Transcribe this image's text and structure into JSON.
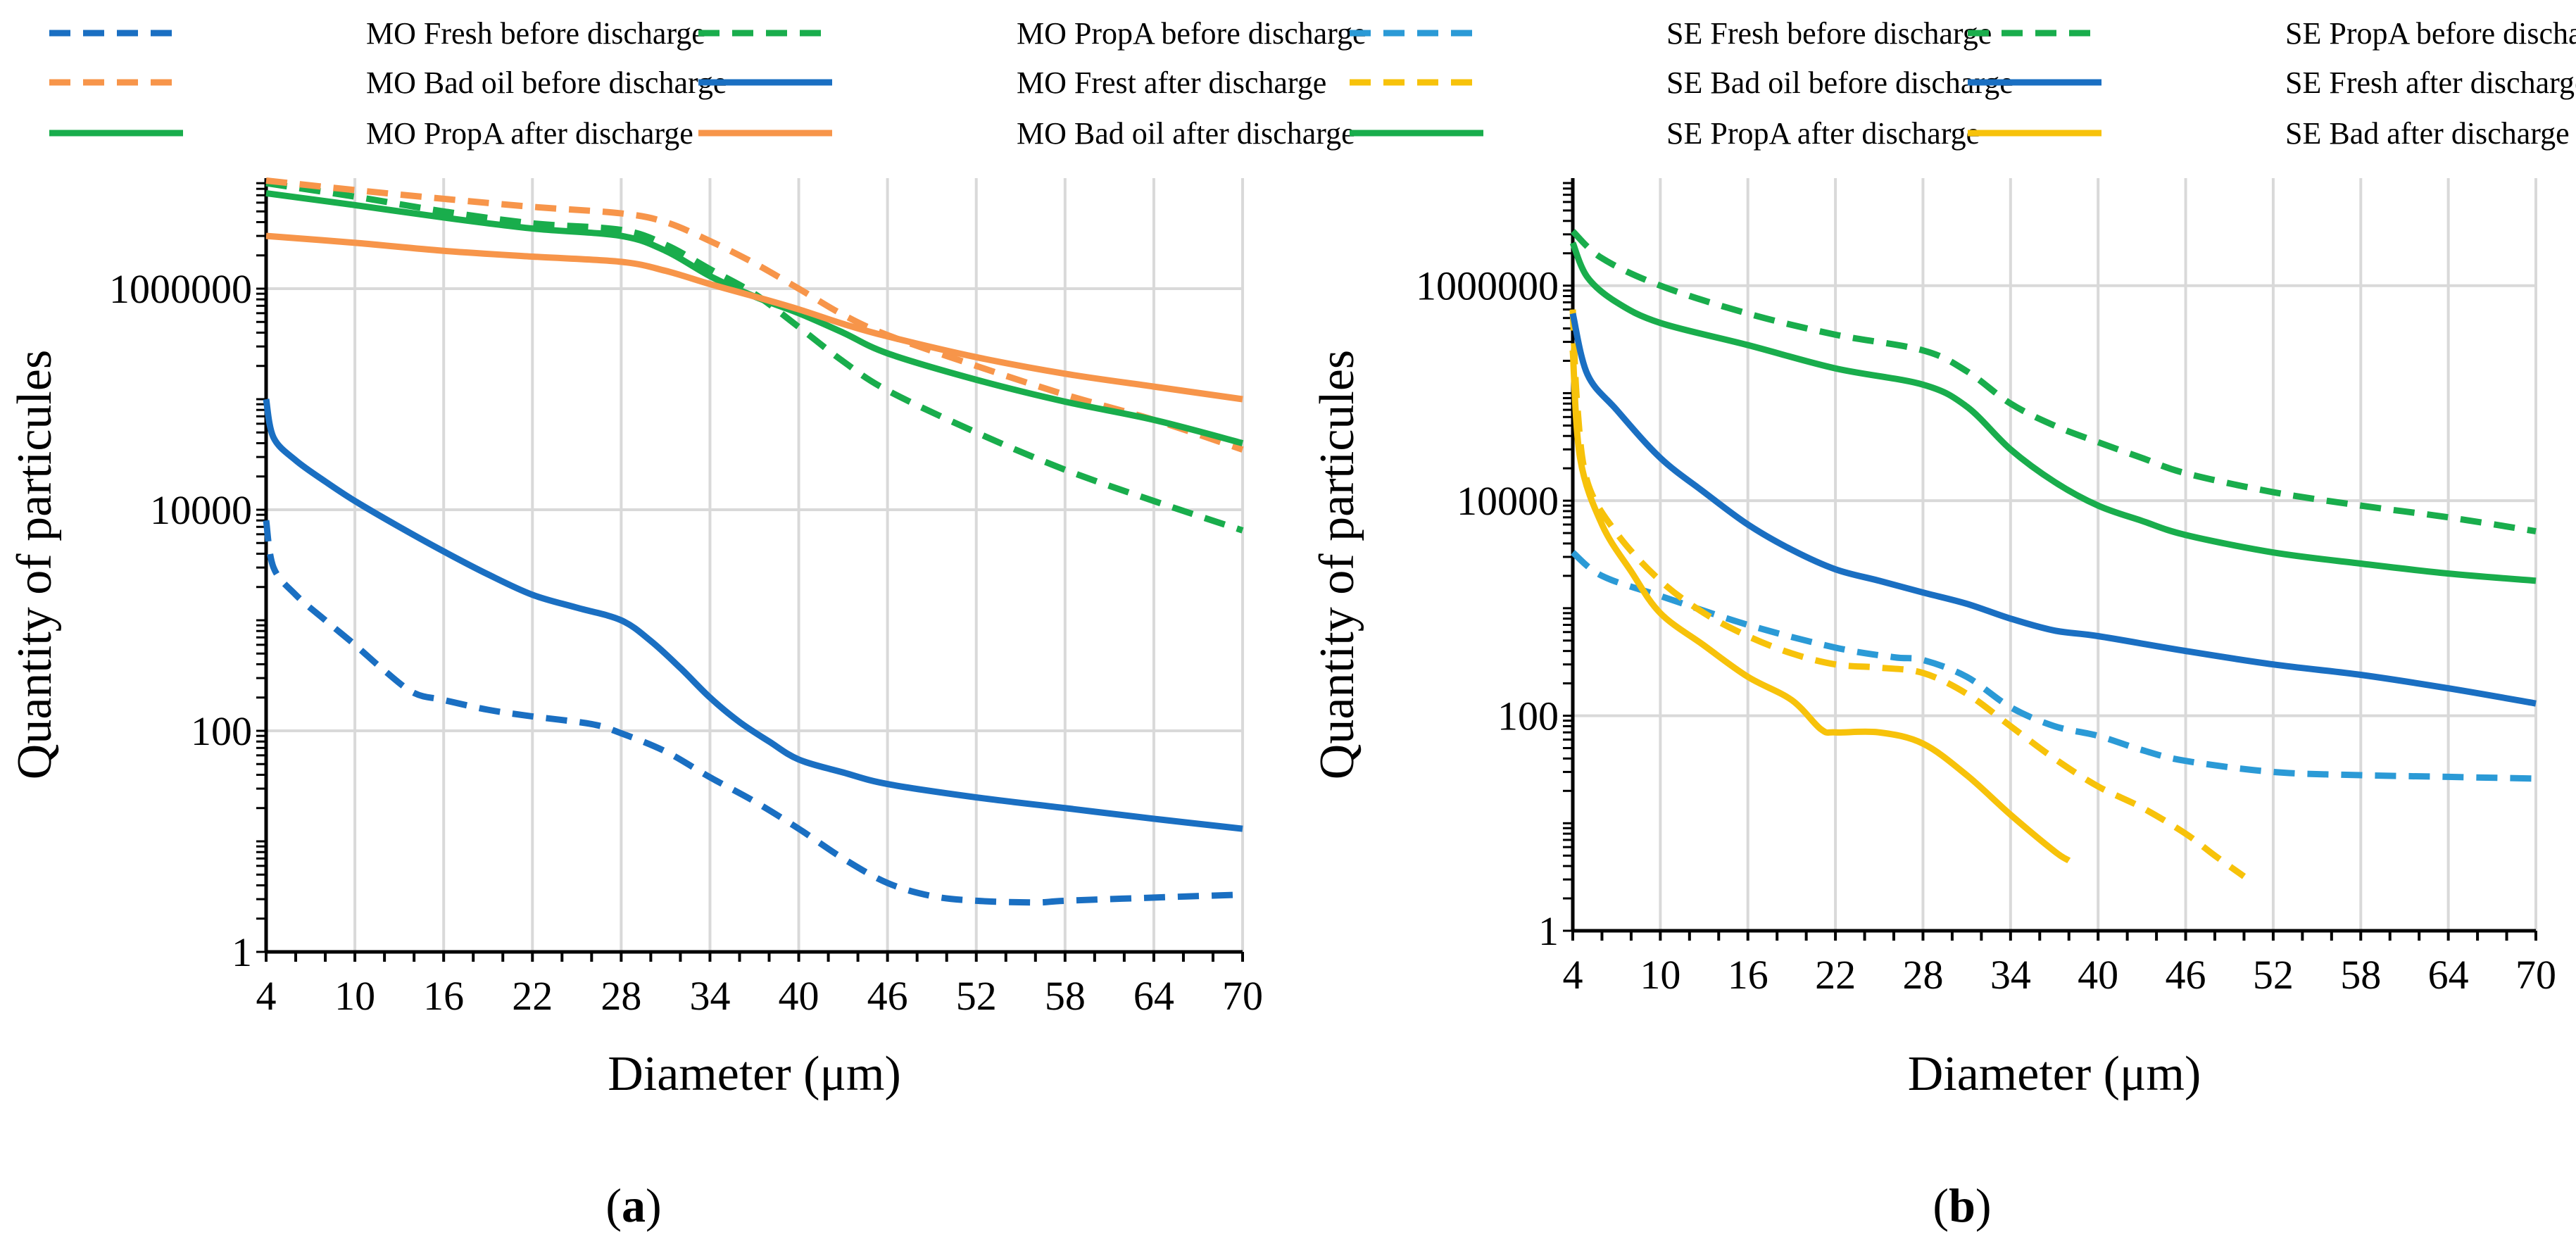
{
  "chart_data": [
    {
      "type": "line",
      "panel_label": "a",
      "yscale": "log",
      "xlabel": "Diameter (μm)",
      "ylabel": "Quantity of particules",
      "xlim": [
        4,
        70
      ],
      "ylim": [
        1,
        10000000
      ],
      "x_ticks": [
        4,
        10,
        16,
        22,
        28,
        34,
        40,
        46,
        52,
        58,
        64,
        70
      ],
      "y_ticks": [
        1,
        100,
        10000,
        1000000
      ],
      "legend": {
        "placement": "top",
        "columns": 2
      },
      "series": [
        {
          "name": "MO Fresh before discharge",
          "color": "#1a6fc2",
          "dash": true,
          "points": [
            [
              4,
              8000
            ],
            [
              4.5,
              3000
            ],
            [
              6,
              1700
            ],
            [
              8,
              1000
            ],
            [
              10,
              600
            ],
            [
              12,
              350
            ],
            [
              14,
              220
            ],
            [
              16,
              190
            ],
            [
              19,
              155
            ],
            [
              22,
              135
            ],
            [
              26,
              115
            ],
            [
              28,
              95
            ],
            [
              31,
              65
            ],
            [
              34,
              38
            ],
            [
              37,
              23
            ],
            [
              40,
              13
            ],
            [
              43,
              7
            ],
            [
              46,
              4.2
            ],
            [
              49,
              3.2
            ],
            [
              52,
              2.9
            ],
            [
              56,
              2.8
            ],
            [
              58,
              2.9
            ],
            [
              64,
              3.1
            ],
            [
              70,
              3.3
            ]
          ]
        },
        {
          "name": "MO PropA before discharge",
          "color": "#19ad4c",
          "dash": true,
          "points": [
            [
              4,
              9000000
            ],
            [
              10,
              6800000
            ],
            [
              16,
              5000000
            ],
            [
              22,
              3900000
            ],
            [
              28,
              3400000
            ],
            [
              31,
              2500000
            ],
            [
              34,
              1500000
            ],
            [
              37,
              900000
            ],
            [
              40,
              450000
            ],
            [
              43,
              220000
            ],
            [
              46,
              120000
            ],
            [
              52,
              50000
            ],
            [
              58,
              23000
            ],
            [
              64,
              12000
            ],
            [
              70,
              6500
            ]
          ]
        },
        {
          "name": "MO Bad oil before discharge",
          "color": "#f7954a",
          "dash": true,
          "points": [
            [
              4,
              9500000
            ],
            [
              10,
              7800000
            ],
            [
              16,
              6500000
            ],
            [
              22,
              5500000
            ],
            [
              28,
              4800000
            ],
            [
              31,
              4000000
            ],
            [
              34,
              2700000
            ],
            [
              37,
              1700000
            ],
            [
              40,
              1000000
            ],
            [
              43,
              580000
            ],
            [
              46,
              380000
            ],
            [
              52,
              200000
            ],
            [
              58,
              110000
            ],
            [
              64,
              65000
            ],
            [
              70,
              35000
            ]
          ]
        },
        {
          "name": "MO Frest after discharge",
          "color": "#1a6fc2",
          "dash": false,
          "points": [
            [
              4,
              100000
            ],
            [
              4.5,
              45000
            ],
            [
              6,
              28000
            ],
            [
              8,
              18000
            ],
            [
              10,
              12000
            ],
            [
              13,
              7000
            ],
            [
              16,
              4200
            ],
            [
              19,
              2600
            ],
            [
              22,
              1700
            ],
            [
              25,
              1300
            ],
            [
              28,
              1000
            ],
            [
              30,
              650
            ],
            [
              32,
              370
            ],
            [
              34,
              200
            ],
            [
              36,
              120
            ],
            [
              38,
              80
            ],
            [
              40,
              55
            ],
            [
              43,
              42
            ],
            [
              46,
              33
            ],
            [
              52,
              25
            ],
            [
              58,
              20
            ],
            [
              64,
              16
            ],
            [
              70,
              13
            ]
          ]
        },
        {
          "name": "MO PropA after discharge",
          "color": "#19ad4c",
          "dash": false,
          "points": [
            [
              4,
              7300000
            ],
            [
              10,
              5700000
            ],
            [
              16,
              4400000
            ],
            [
              22,
              3500000
            ],
            [
              28,
              3000000
            ],
            [
              31,
              2200000
            ],
            [
              34,
              1300000
            ],
            [
              37,
              850000
            ],
            [
              40,
              600000
            ],
            [
              43,
              400000
            ],
            [
              46,
              260000
            ],
            [
              52,
              150000
            ],
            [
              58,
              95000
            ],
            [
              64,
              65000
            ],
            [
              70,
              40000
            ]
          ]
        },
        {
          "name": "MO Bad oil after discharge",
          "color": "#f7954a",
          "dash": false,
          "points": [
            [
              4,
              3000000
            ],
            [
              10,
              2600000
            ],
            [
              16,
              2200000
            ],
            [
              22,
              1950000
            ],
            [
              28,
              1750000
            ],
            [
              31,
              1450000
            ],
            [
              34,
              1100000
            ],
            [
              37,
              850000
            ],
            [
              40,
              650000
            ],
            [
              43,
              480000
            ],
            [
              46,
              370000
            ],
            [
              52,
              240000
            ],
            [
              58,
              170000
            ],
            [
              64,
              130000
            ],
            [
              70,
              100000
            ]
          ]
        }
      ]
    },
    {
      "type": "line",
      "panel_label": "b",
      "yscale": "log",
      "xlabel": "Diameter (μm)",
      "ylabel": "Quantity of particules",
      "xlim": [
        4,
        70
      ],
      "ylim": [
        1,
        10000000
      ],
      "x_ticks": [
        4,
        10,
        16,
        22,
        28,
        34,
        40,
        46,
        52,
        58,
        64,
        70
      ],
      "y_ticks": [
        1,
        100,
        10000,
        1000000
      ],
      "legend": {
        "placement": "top",
        "columns": 2
      },
      "series": [
        {
          "name": "SE Fresh before discharge",
          "color": "#2b9ad6",
          "dash": true,
          "points": [
            [
              4,
              3300
            ],
            [
              6,
              2000
            ],
            [
              10,
              1300
            ],
            [
              16,
              700
            ],
            [
              22,
              430
            ],
            [
              26,
              350
            ],
            [
              28,
              330
            ],
            [
              31,
              230
            ],
            [
              34,
              120
            ],
            [
              37,
              80
            ],
            [
              40,
              65
            ],
            [
              43,
              48
            ],
            [
              46,
              38
            ],
            [
              52,
              30
            ],
            [
              58,
              28
            ],
            [
              64,
              27
            ],
            [
              70,
              26
            ]
          ]
        },
        {
          "name": "SE PropA before discharge",
          "color": "#19ad4c",
          "dash": true,
          "points": [
            [
              4,
              3200000
            ],
            [
              6,
              1800000
            ],
            [
              10,
              1000000
            ],
            [
              16,
              550000
            ],
            [
              22,
              350000
            ],
            [
              28,
              250000
            ],
            [
              31,
              160000
            ],
            [
              34,
              80000
            ],
            [
              37,
              50000
            ],
            [
              40,
              35000
            ],
            [
              43,
              25000
            ],
            [
              46,
              18000
            ],
            [
              52,
              12000
            ],
            [
              58,
              9000
            ],
            [
              64,
              7000
            ],
            [
              70,
              5200
            ]
          ]
        },
        {
          "name": "SE Bad oil before discharge",
          "color": "#f7c20a",
          "dash": true,
          "points": [
            [
              4,
              600000
            ],
            [
              4.3,
              80000
            ],
            [
              5,
              15000
            ],
            [
              7,
              5000
            ],
            [
              10,
              1800
            ],
            [
              13,
              900
            ],
            [
              16,
              550
            ],
            [
              19,
              380
            ],
            [
              22,
              300
            ],
            [
              25,
              280
            ],
            [
              28,
              250
            ],
            [
              31,
              160
            ],
            [
              34,
              80
            ],
            [
              37,
              40
            ],
            [
              40,
              22
            ],
            [
              43,
              14
            ],
            [
              46,
              8
            ],
            [
              48,
              5
            ],
            [
              50,
              3.2
            ]
          ]
        },
        {
          "name": "SE Fresh after discharge",
          "color": "#1a6fc2",
          "dash": false,
          "points": [
            [
              4,
              550000
            ],
            [
              5,
              150000
            ],
            [
              7,
              70000
            ],
            [
              10,
              25000
            ],
            [
              13,
              12000
            ],
            [
              16,
              6000
            ],
            [
              19,
              3500
            ],
            [
              22,
              2300
            ],
            [
              25,
              1800
            ],
            [
              28,
              1400
            ],
            [
              31,
              1100
            ],
            [
              34,
              800
            ],
            [
              37,
              620
            ],
            [
              40,
              550
            ],
            [
              46,
              400
            ],
            [
              52,
              300
            ],
            [
              58,
              240
            ],
            [
              64,
              180
            ],
            [
              70,
              130
            ]
          ]
        },
        {
          "name": "SE PropA after discharge",
          "color": "#19ad4c",
          "dash": false,
          "points": [
            [
              4,
              2500000
            ],
            [
              5,
              1200000
            ],
            [
              7,
              700000
            ],
            [
              10,
              450000
            ],
            [
              16,
              280000
            ],
            [
              22,
              170000
            ],
            [
              28,
              120000
            ],
            [
              31,
              75000
            ],
            [
              34,
              30000
            ],
            [
              37,
              15000
            ],
            [
              40,
              9000
            ],
            [
              43,
              6500
            ],
            [
              46,
              4800
            ],
            [
              52,
              3300
            ],
            [
              58,
              2600
            ],
            [
              64,
              2100
            ],
            [
              70,
              1800
            ]
          ]
        },
        {
          "name": "SE Bad after discharge",
          "color": "#f7c20a",
          "dash": false,
          "points": [
            [
              4,
              250000
            ],
            [
              4.5,
              25000
            ],
            [
              6,
              6000
            ],
            [
              8,
              2200
            ],
            [
              10,
              900
            ],
            [
              13,
              450
            ],
            [
              16,
              230
            ],
            [
              19,
              140
            ],
            [
              21,
              75
            ],
            [
              22,
              70
            ],
            [
              25,
              70
            ],
            [
              28,
              55
            ],
            [
              31,
              28
            ],
            [
              34,
              12
            ],
            [
              37,
              5.5
            ],
            [
              38,
              4.5
            ]
          ]
        }
      ]
    }
  ]
}
